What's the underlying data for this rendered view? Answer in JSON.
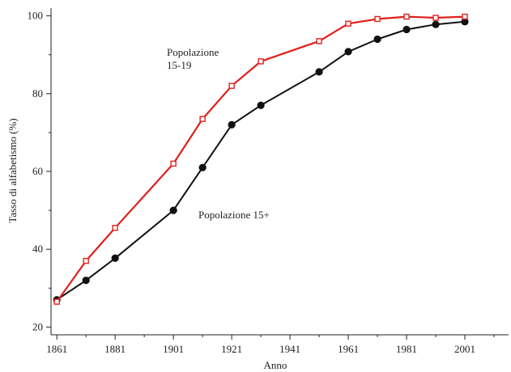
{
  "chart_data": {
    "type": "line",
    "xlabel": "Anno",
    "ylabel": "Tasso di alfabetismo (%)",
    "xlim": [
      1859,
      2016
    ],
    "ylim": [
      18,
      102
    ],
    "x_ticks": [
      1861,
      1881,
      1901,
      1921,
      1941,
      1961,
      1981,
      2001
    ],
    "x_minor_ticks": [
      1871,
      1891,
      1911,
      1931,
      1951,
      1971,
      1991,
      2011
    ],
    "y_ticks": [
      20,
      40,
      60,
      80,
      100
    ],
    "y_minor_ticks": [
      30,
      50,
      70,
      90
    ],
    "grid": false,
    "legend": "none",
    "series": [
      {
        "name": "Popolazione 15-19",
        "label_lines": [
          "Popolazione",
          "15-19"
        ],
        "color": "#e0201b",
        "marker": "open-square",
        "x": [
          1861,
          1871,
          1881,
          1901,
          1911,
          1921,
          1931,
          1951,
          1961,
          1971,
          1981,
          1991,
          2001
        ],
        "y": [
          26.5,
          37,
          45.5,
          62,
          73.5,
          82,
          88.3,
          93.5,
          98,
          99.2,
          99.8,
          99.5,
          99.8
        ]
      },
      {
        "name": "Popolazione 15+",
        "label_lines": [
          "Popolazione 15+"
        ],
        "color": "#111111",
        "marker": "filled-circle",
        "x": [
          1861,
          1871,
          1881,
          1901,
          1911,
          1921,
          1931,
          1951,
          1961,
          1971,
          1981,
          1991,
          2001
        ],
        "y": [
          27,
          32,
          37.7,
          50,
          61,
          72,
          77,
          85.6,
          90.8,
          94,
          96.5,
          97.8,
          98.5
        ]
      }
    ]
  }
}
